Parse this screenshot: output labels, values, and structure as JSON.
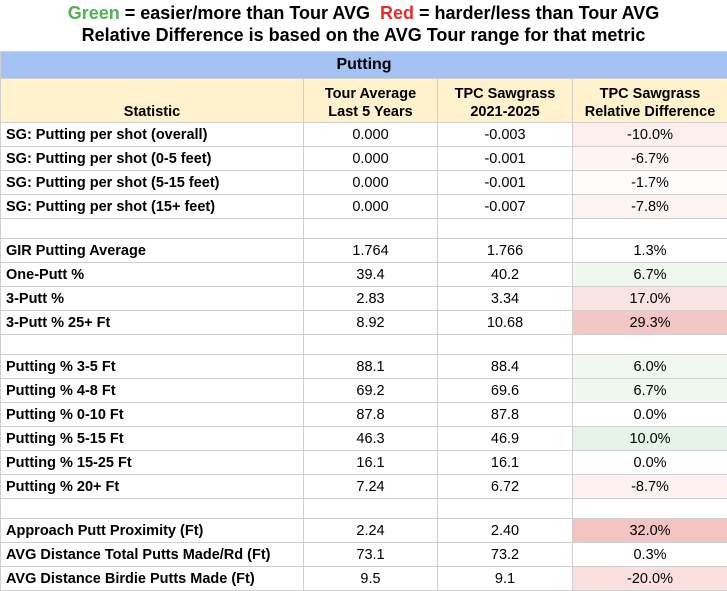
{
  "legend": {
    "green_word": "Green",
    "green_text": " = easier/more than Tour AVG  ",
    "red_word": "Red",
    "red_text": " = harder/less than Tour AVG",
    "line2": "Relative Difference is based on the AVG Tour range for that metric",
    "green_color": "#4fb34f",
    "red_color": "#e0312b"
  },
  "table": {
    "title": "Putting",
    "headers": {
      "statistic": "Statistic",
      "tour_line1": "Tour Average",
      "tour_line2": "Last 5 Years",
      "tpc_line1": "TPC Sawgrass",
      "tpc_line2": "2021-2025",
      "rel_line1": "TPC Sawgrass",
      "rel_line2": "Relative Difference"
    },
    "rows": [
      {
        "type": "data",
        "stat": "SG: Putting per shot (overall)",
        "tour": "0.000",
        "tpc": "-0.003",
        "rel": "-10.0%",
        "color": "#fcefee"
      },
      {
        "type": "data",
        "stat": "SG: Putting per shot (0-5 feet)",
        "tour": "0.000",
        "tpc": "-0.001",
        "rel": "-6.7%",
        "color": "#fdf4f3"
      },
      {
        "type": "data",
        "stat": "SG: Putting per shot (5-15 feet)",
        "tour": "0.000",
        "tpc": "-0.001",
        "rel": "-1.7%",
        "color": "#fefbfb"
      },
      {
        "type": "data",
        "stat": "SG: Putting per shot (15+ feet)",
        "tour": "0.000",
        "tpc": "-0.007",
        "rel": "-7.8%",
        "color": "#fdf3f2"
      },
      {
        "type": "spacer"
      },
      {
        "type": "data",
        "stat": "GIR Putting Average",
        "tour": "1.764",
        "tpc": "1.766",
        "rel": "1.3%",
        "color": "#ffffff"
      },
      {
        "type": "data",
        "stat": "One-Putt %",
        "tour": "39.4",
        "tpc": "40.2",
        "rel": "6.7%",
        "color": "#eff7ef"
      },
      {
        "type": "data",
        "stat": "3-Putt %",
        "tour": "2.83",
        "tpc": "3.34",
        "rel": "17.0%",
        "color": "#fae3e2"
      },
      {
        "type": "data",
        "stat": "3-Putt % 25+ Ft",
        "tour": "8.92",
        "tpc": "10.68",
        "rel": "29.3%",
        "color": "#f4c7c5"
      },
      {
        "type": "spacer"
      },
      {
        "type": "data",
        "stat": "Putting % 3-5 Ft",
        "tour": "88.1",
        "tpc": "88.4",
        "rel": "6.0%",
        "color": "#f1f8f1"
      },
      {
        "type": "data",
        "stat": "Putting % 4-8 Ft",
        "tour": "69.2",
        "tpc": "69.6",
        "rel": "6.7%",
        "color": "#eff7ef"
      },
      {
        "type": "data",
        "stat": "Putting % 0-10 Ft",
        "tour": "87.8",
        "tpc": "87.8",
        "rel": "0.0%",
        "color": "#ffffff"
      },
      {
        "type": "data",
        "stat": "Putting % 5-15 Ft",
        "tour": "46.3",
        "tpc": "46.9",
        "rel": "10.0%",
        "color": "#e7f3e8"
      },
      {
        "type": "data",
        "stat": "Putting % 15-25 Ft",
        "tour": "16.1",
        "tpc": "16.1",
        "rel": "0.0%",
        "color": "#ffffff"
      },
      {
        "type": "data",
        "stat": "Putting % 20+ Ft",
        "tour": "7.24",
        "tpc": "6.72",
        "rel": "-8.7%",
        "color": "#fdf2f1"
      },
      {
        "type": "spacer"
      },
      {
        "type": "data",
        "stat": "Approach Putt Proximity (Ft)",
        "tour": "2.24",
        "tpc": "2.40",
        "rel": "32.0%",
        "color": "#f4c4c2"
      },
      {
        "type": "data",
        "stat": "AVG Distance Total Putts Made/Rd (Ft)",
        "tour": "73.1",
        "tpc": "73.2",
        "rel": "0.3%",
        "color": "#ffffff"
      },
      {
        "type": "data",
        "stat": "AVG Distance Birdie Putts Made (Ft)",
        "tour": "9.5",
        "tpc": "9.1",
        "rel": "-20.0%",
        "color": "#f9e0df"
      }
    ]
  }
}
